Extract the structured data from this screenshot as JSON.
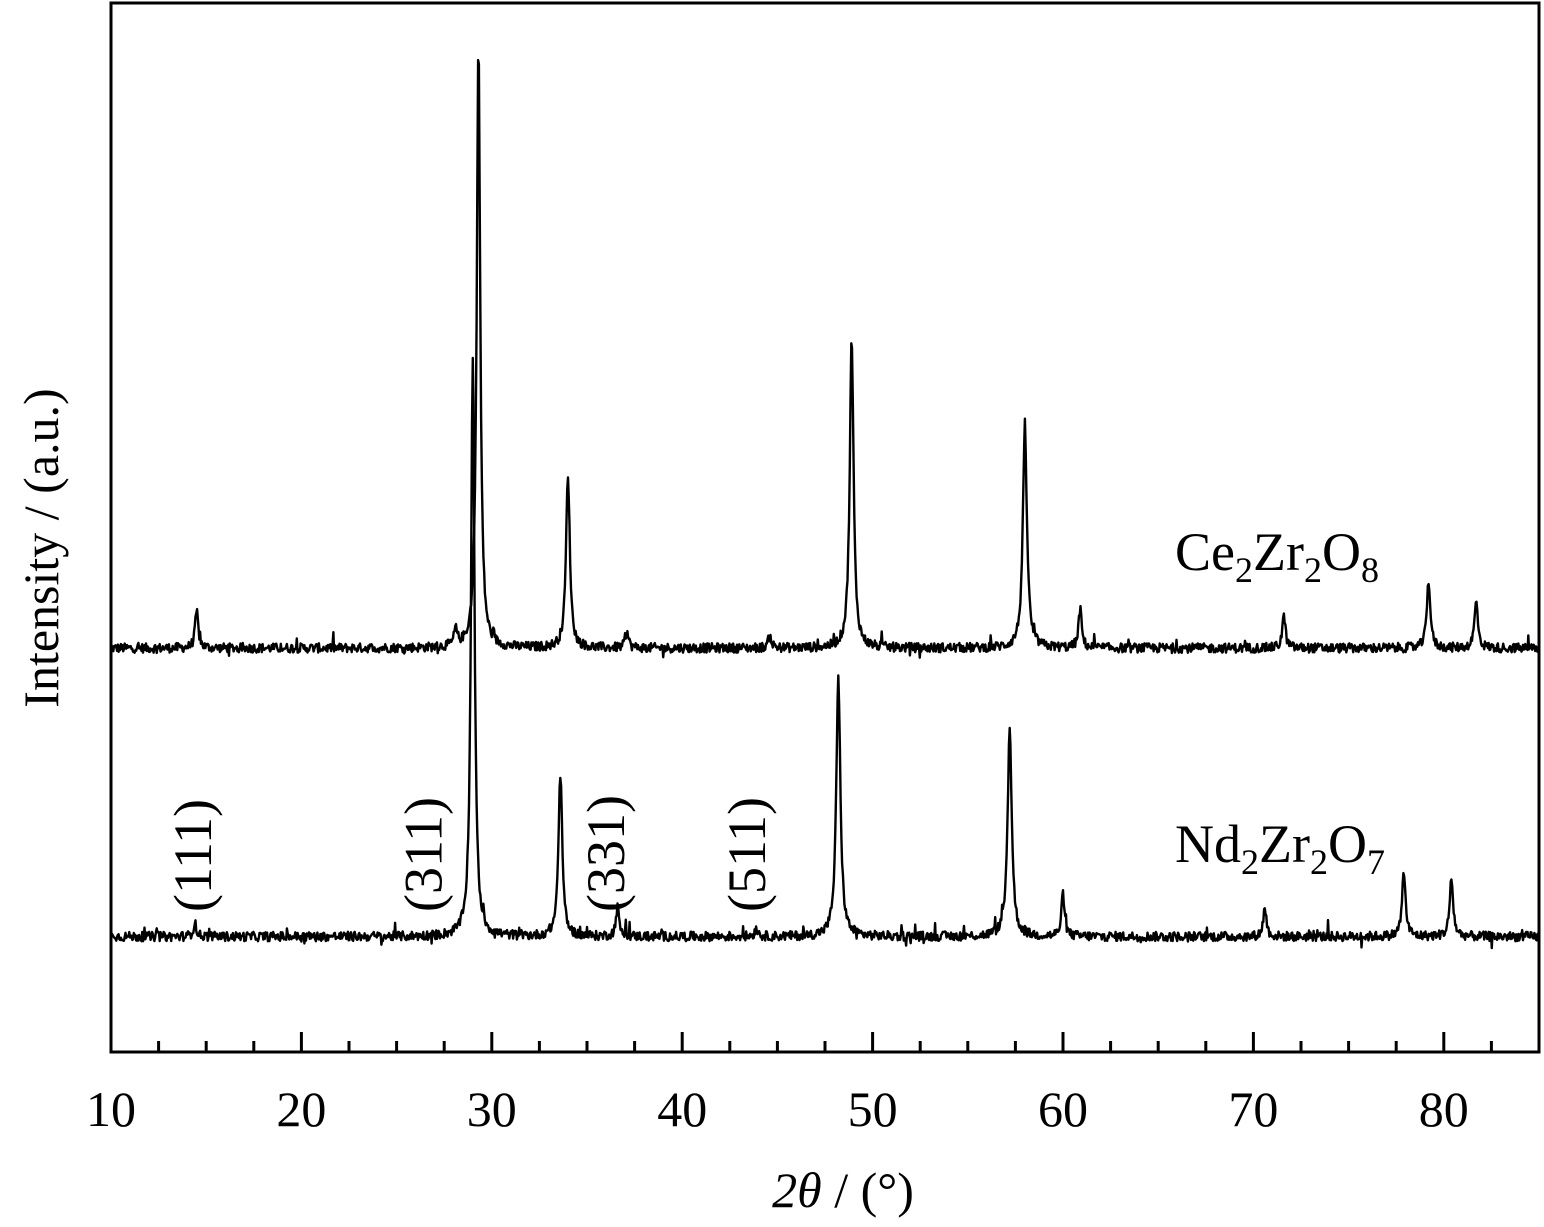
{
  "chart_data": {
    "type": "line",
    "xlabel": {
      "italic_part": "2θ",
      "rest": " / (°)"
    },
    "ylabel": "Intensity / (a.u.)",
    "xlim": [
      10,
      85
    ],
    "x_ticks_major": [
      10,
      20,
      30,
      40,
      50,
      60,
      70,
      80
    ],
    "x_tick_labels": [
      "10",
      "20",
      "30",
      "40",
      "50",
      "60",
      "70",
      "80"
    ],
    "x_ticks_minor_step": 2.5,
    "y_ticks": "none",
    "grid": false,
    "legend": "none",
    "series": [
      {
        "formula": [
          {
            "t": "Ce",
            "sub": false
          },
          {
            "t": "2",
            "sub": true
          },
          {
            "t": "Zr",
            "sub": false
          },
          {
            "t": "2",
            "sub": true
          },
          {
            "t": "O",
            "sub": false
          },
          {
            "t": "8",
            "sub": true
          }
        ],
        "baseline": 0.385,
        "peaks": [
          {
            "x": 14.5,
            "height": 0.035,
            "width": 0.1
          },
          {
            "x": 28.1,
            "height": 0.015,
            "width": 0.1
          },
          {
            "x": 29.3,
            "height": 0.575,
            "width": 0.11
          },
          {
            "x": 34.0,
            "height": 0.165,
            "width": 0.12
          },
          {
            "x": 37.1,
            "height": 0.015,
            "width": 0.1
          },
          {
            "x": 44.6,
            "height": 0.012,
            "width": 0.1
          },
          {
            "x": 48.9,
            "height": 0.295,
            "width": 0.12
          },
          {
            "x": 58.0,
            "height": 0.208,
            "width": 0.13
          },
          {
            "x": 60.9,
            "height": 0.037,
            "width": 0.1
          },
          {
            "x": 71.6,
            "height": 0.031,
            "width": 0.1
          },
          {
            "x": 79.2,
            "height": 0.065,
            "width": 0.11
          },
          {
            "x": 81.7,
            "height": 0.044,
            "width": 0.11
          }
        ]
      },
      {
        "formula": [
          {
            "t": "Nd",
            "sub": false
          },
          {
            "t": "2",
            "sub": true
          },
          {
            "t": "Zr",
            "sub": false
          },
          {
            "t": "2",
            "sub": true
          },
          {
            "t": "O",
            "sub": false
          },
          {
            "t": "7",
            "sub": true
          }
        ],
        "baseline": 0.11,
        "peaks": [
          {
            "x": 14.4,
            "height": 0.013,
            "width": 0.1
          },
          {
            "x": 29.0,
            "height": 0.555,
            "width": 0.11
          },
          {
            "x": 33.6,
            "height": 0.155,
            "width": 0.12
          },
          {
            "x": 36.6,
            "height": 0.028,
            "width": 0.1
          },
          {
            "x": 43.9,
            "height": 0.008,
            "width": 0.1
          },
          {
            "x": 48.2,
            "height": 0.245,
            "width": 0.13
          },
          {
            "x": 57.2,
            "height": 0.2,
            "width": 0.13
          },
          {
            "x": 60.0,
            "height": 0.04,
            "width": 0.1
          },
          {
            "x": 70.6,
            "height": 0.028,
            "width": 0.1
          },
          {
            "x": 77.9,
            "height": 0.062,
            "width": 0.11
          },
          {
            "x": 80.4,
            "height": 0.055,
            "width": 0.11
          }
        ]
      }
    ],
    "annotations": [
      {
        "text": "(111)",
        "x": 14.3
      },
      {
        "text": "(311)",
        "x": 26.4
      },
      {
        "text": "(331)",
        "x": 36.0
      },
      {
        "text": "(511)",
        "x": 43.4
      }
    ]
  }
}
